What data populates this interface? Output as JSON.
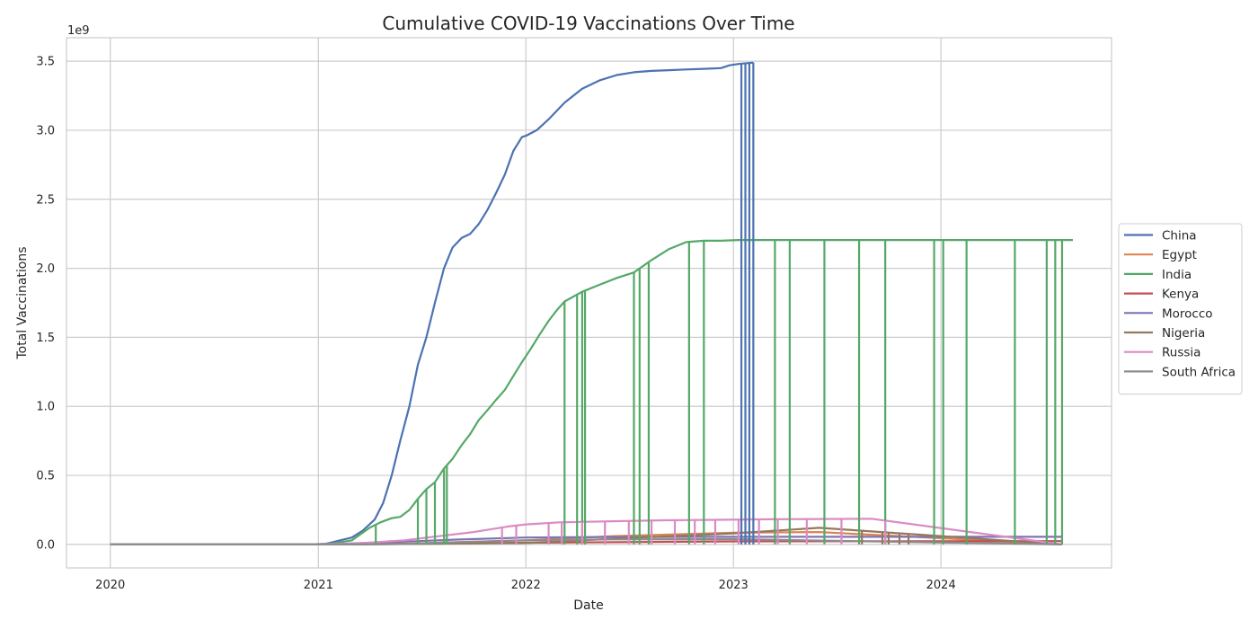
{
  "chart_data": {
    "type": "line",
    "title": "Cumulative COVID-19 Vaccinations Over Time",
    "xlabel": "Date",
    "ylabel": "Total Vaccinations",
    "y_scale_label": "1e9",
    "x_ticks": [
      "2020",
      "2021",
      "2022",
      "2023",
      "2024"
    ],
    "x_tick_dates": [
      "2020-01-01",
      "2021-01-01",
      "2022-01-01",
      "2023-01-01",
      "2024-01-01"
    ],
    "y_ticks": [
      "0.0",
      "0.5",
      "1.0",
      "1.5",
      "2.0",
      "2.5",
      "3.0",
      "3.5"
    ],
    "y_tick_values": [
      0.0,
      0.5,
      1.0,
      1.5,
      2.0,
      2.5,
      3.0,
      3.5
    ],
    "xlim": [
      "2019-10-16",
      "2024-10-27"
    ],
    "ylim": [
      -0.17,
      3.67
    ],
    "grid": true,
    "legend_position": "center-right, outside plot",
    "series": [
      {
        "name": "China",
        "color": "#4c72b0",
        "x": [
          "2020-01-01",
          "2020-12-15",
          "2021-01-15",
          "2021-03-01",
          "2021-03-20",
          "2021-04-10",
          "2021-04-25",
          "2021-05-10",
          "2021-05-25",
          "2021-06-10",
          "2021-06-25",
          "2021-07-10",
          "2021-07-25",
          "2021-08-10",
          "2021-08-25",
          "2021-09-10",
          "2021-09-25",
          "2021-10-10",
          "2021-10-25",
          "2021-11-10",
          "2021-11-25",
          "2021-12-10",
          "2021-12-25",
          "2022-01-01",
          "2022-01-20",
          "2022-02-10",
          "2022-03-10",
          "2022-04-10",
          "2022-05-10",
          "2022-06-10",
          "2022-07-10",
          "2022-08-10",
          "2022-09-10",
          "2022-10-10",
          "2022-11-10",
          "2022-12-10",
          "2022-12-25",
          "2023-01-10",
          "2023-02-05"
        ],
        "y": [
          0,
          0,
          0.005,
          0.05,
          0.1,
          0.18,
          0.3,
          0.5,
          0.75,
          1.0,
          1.3,
          1.5,
          1.75,
          2.0,
          2.15,
          2.22,
          2.25,
          2.32,
          2.42,
          2.55,
          2.68,
          2.85,
          2.95,
          2.96,
          3.0,
          3.08,
          3.2,
          3.3,
          3.36,
          3.4,
          3.42,
          3.43,
          3.435,
          3.44,
          3.445,
          3.45,
          3.47,
          3.48,
          3.49
        ]
      },
      {
        "name": "Egypt",
        "color": "#dd8452",
        "x": [
          "2020-01-01",
          "2021-01-01",
          "2021-06-01",
          "2022-01-01",
          "2022-06-01",
          "2023-01-01",
          "2023-06-01",
          "2024-08-01"
        ],
        "y": [
          0,
          0,
          0.005,
          0.03,
          0.06,
          0.085,
          0.09,
          0.0
        ]
      },
      {
        "name": "India",
        "color": "#55a868",
        "x": [
          "2020-01-01",
          "2021-01-10",
          "2021-02-01",
          "2021-03-01",
          "2021-04-01",
          "2021-04-20",
          "2021-05-10",
          "2021-05-25",
          "2021-06-10",
          "2021-06-25",
          "2021-07-10",
          "2021-07-25",
          "2021-08-10",
          "2021-08-25",
          "2021-09-10",
          "2021-09-25",
          "2021-10-10",
          "2021-10-25",
          "2021-11-10",
          "2021-11-25",
          "2021-12-10",
          "2021-12-25",
          "2022-01-10",
          "2022-01-25",
          "2022-02-10",
          "2022-02-25",
          "2022-03-10",
          "2022-04-10",
          "2022-05-10",
          "2022-06-10",
          "2022-07-10",
          "2022-08-10",
          "2022-09-10",
          "2022-10-10",
          "2022-11-10",
          "2022-12-10",
          "2023-01-10",
          "2023-06-10",
          "2024-08-20"
        ],
        "y": [
          0,
          0,
          0.01,
          0.03,
          0.12,
          0.16,
          0.19,
          0.2,
          0.25,
          0.33,
          0.4,
          0.45,
          0.55,
          0.62,
          0.72,
          0.8,
          0.9,
          0.97,
          1.05,
          1.12,
          1.22,
          1.32,
          1.42,
          1.52,
          1.62,
          1.7,
          1.76,
          1.83,
          1.88,
          1.93,
          1.97,
          2.06,
          2.14,
          2.19,
          2.2,
          2.2,
          2.205,
          2.205,
          2.205
        ]
      },
      {
        "name": "Kenya",
        "color": "#c44e52",
        "x": [
          "2020-01-01",
          "2021-03-01",
          "2022-01-01",
          "2023-01-01",
          "2024-08-01"
        ],
        "y": [
          0,
          0,
          0.012,
          0.022,
          0.024
        ]
      },
      {
        "name": "Morocco",
        "color": "#8172b3",
        "x": [
          "2020-01-01",
          "2021-01-20",
          "2021-03-01",
          "2021-06-01",
          "2021-09-01",
          "2022-01-01",
          "2022-06-01",
          "2023-01-01",
          "2024-08-01"
        ],
        "y": [
          0,
          0,
          0.008,
          0.02,
          0.035,
          0.05,
          0.054,
          0.055,
          0.055
        ]
      },
      {
        "name": "Nigeria",
        "color": "#937860",
        "x": [
          "2020-01-01",
          "2021-03-01",
          "2022-01-01",
          "2022-06-01",
          "2023-01-01",
          "2023-06-01",
          "2024-08-01"
        ],
        "y": [
          0,
          0,
          0.01,
          0.04,
          0.08,
          0.12,
          0.0
        ]
      },
      {
        "name": "Russia",
        "color": "#da8bc3",
        "x": [
          "2020-01-01",
          "2020-12-15",
          "2021-03-01",
          "2021-06-01",
          "2021-08-01",
          "2021-10-01",
          "2021-12-01",
          "2022-01-01",
          "2022-03-01",
          "2022-06-01",
          "2022-09-01",
          "2022-12-01",
          "2023-03-01",
          "2023-06-01",
          "2023-09-01",
          "2024-08-01"
        ],
        "y": [
          0,
          0,
          0.005,
          0.03,
          0.06,
          0.09,
          0.13,
          0.145,
          0.16,
          0.168,
          0.175,
          0.178,
          0.182,
          0.184,
          0.186,
          0.0
        ]
      },
      {
        "name": "South Africa",
        "color": "#8c8c8c",
        "x": [
          "2020-01-01",
          "2021-02-15",
          "2021-06-01",
          "2021-10-01",
          "2022-01-01",
          "2022-06-01",
          "2023-01-01",
          "2024-08-01"
        ],
        "y": [
          0,
          0,
          0.004,
          0.02,
          0.03,
          0.036,
          0.038,
          0.0
        ]
      }
    ],
    "dropouts": [
      {
        "series": "China",
        "dates": [
          "2023-01-15",
          "2023-01-22",
          "2023-01-29",
          "2023-02-05"
        ],
        "low": 0.0
      },
      {
        "series": "India",
        "dates": [
          "2021-04-12",
          "2021-06-25",
          "2021-07-10",
          "2021-07-25",
          "2021-08-10",
          "2021-08-15",
          "2022-03-10",
          "2022-04-01",
          "2022-04-10",
          "2022-04-15",
          "2022-07-10",
          "2022-07-20",
          "2022-08-05",
          "2022-10-15",
          "2022-11-10",
          "2023-03-15",
          "2023-04-10",
          "2023-06-10",
          "2023-08-10",
          "2023-09-25",
          "2023-12-20",
          "2024-01-05",
          "2024-02-15",
          "2024-05-10",
          "2024-07-05",
          "2024-07-20",
          "2024-08-01"
        ],
        "low": 0.0
      },
      {
        "series": "Russia",
        "dates": [
          "2021-11-20",
          "2021-12-15",
          "2022-02-10",
          "2022-03-05",
          "2022-04-10",
          "2022-05-20",
          "2022-07-01",
          "2022-08-10",
          "2022-09-20",
          "2022-10-25",
          "2022-11-30",
          "2023-01-10",
          "2023-02-15",
          "2023-03-20",
          "2023-05-10",
          "2023-07-10",
          "2023-09-25"
        ],
        "low": 0.0
      },
      {
        "series": "Nigeria",
        "dates": [
          "2023-08-15",
          "2023-09-20",
          "2023-10-01",
          "2023-10-20",
          "2023-11-05"
        ],
        "low": 0.0
      }
    ]
  }
}
